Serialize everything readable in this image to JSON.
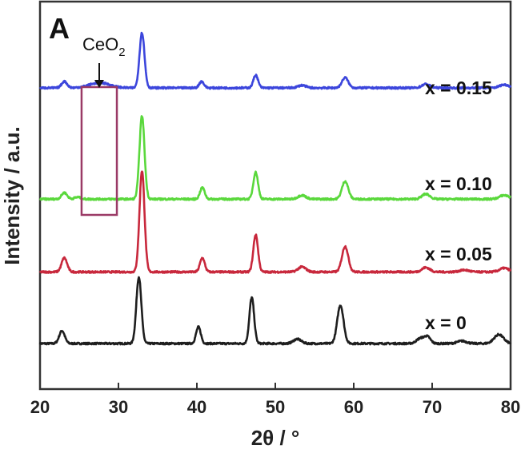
{
  "chart_data": {
    "type": "line",
    "panel_label": "A",
    "xlabel": "2θ / °",
    "ylabel": "Intensity / a.u.",
    "xlim": [
      20,
      80
    ],
    "xticks": [
      20,
      30,
      40,
      50,
      60,
      70,
      80
    ],
    "xtick_labels": [
      "20",
      "30",
      "40",
      "50",
      "60",
      "70",
      "80"
    ],
    "annotation": {
      "main": "CeO",
      "sub": "2",
      "x_range": [
        25.3,
        29.8
      ]
    },
    "series": [
      {
        "name": "x = 0",
        "color": "#1e1e1e",
        "baseline": 0.0,
        "peaks": [
          [
            22.8,
            0.1,
            0.35
          ],
          [
            32.6,
            0.52,
            0.32
          ],
          [
            40.2,
            0.13,
            0.3
          ],
          [
            47.0,
            0.36,
            0.3
          ],
          [
            52.8,
            0.035,
            0.5
          ],
          [
            58.3,
            0.3,
            0.4
          ],
          [
            68.5,
            0.04,
            0.5
          ],
          [
            69.4,
            0.05,
            0.4
          ],
          [
            73.8,
            0.02,
            0.6
          ],
          [
            78.5,
            0.07,
            0.6
          ]
        ]
      },
      {
        "name": "x = 0.05",
        "color": "#c8283c",
        "baseline": 0.56,
        "peaks": [
          [
            23.1,
            0.11,
            0.35
          ],
          [
            33.0,
            0.79,
            0.32
          ],
          [
            40.7,
            0.11,
            0.3
          ],
          [
            47.5,
            0.29,
            0.3
          ],
          [
            53.4,
            0.04,
            0.5
          ],
          [
            58.9,
            0.2,
            0.4
          ],
          [
            69.2,
            0.035,
            0.5
          ],
          [
            74.1,
            0.015,
            0.6
          ],
          [
            79.2,
            0.03,
            0.6
          ]
        ]
      },
      {
        "name": "x = 0.10",
        "color": "#5ad83c",
        "baseline": 1.13,
        "peaks": [
          [
            23.1,
            0.05,
            0.35
          ],
          [
            24.8,
            0.015,
            0.4
          ],
          [
            33.0,
            0.65,
            0.32
          ],
          [
            40.7,
            0.09,
            0.3
          ],
          [
            47.5,
            0.21,
            0.3
          ],
          [
            53.4,
            0.03,
            0.5
          ],
          [
            58.9,
            0.14,
            0.4
          ],
          [
            69.2,
            0.04,
            0.5
          ],
          [
            79.2,
            0.03,
            0.6
          ]
        ]
      },
      {
        "name": "x = 0.15",
        "color": "#3c46dc",
        "baseline": 2.0,
        "peaks": [
          [
            23.1,
            0.05,
            0.35
          ],
          [
            27.6,
            0.04,
            1.3
          ],
          [
            33.0,
            0.43,
            0.32
          ],
          [
            40.6,
            0.05,
            0.3
          ],
          [
            47.5,
            0.1,
            0.3
          ],
          [
            53.4,
            0.02,
            0.5
          ],
          [
            58.9,
            0.08,
            0.4
          ],
          [
            69.2,
            0.03,
            0.5
          ],
          [
            79.2,
            0.025,
            0.6
          ]
        ]
      }
    ]
  }
}
